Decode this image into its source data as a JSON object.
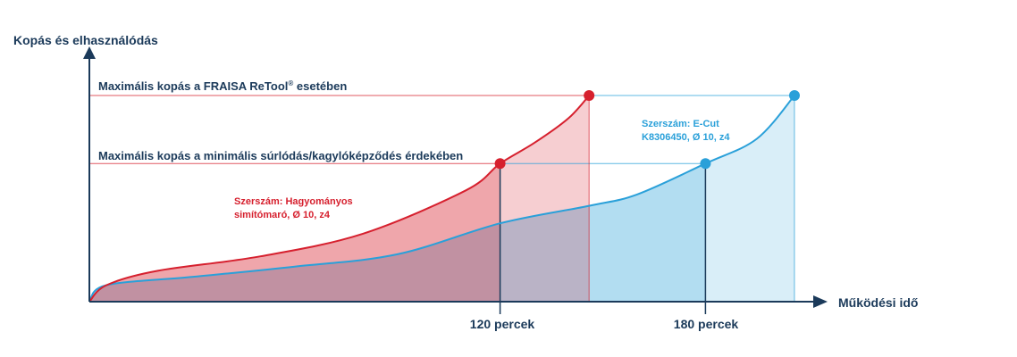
{
  "chart_data": {
    "type": "area",
    "ylabel": "Kopás és elhasználódás",
    "xlabel": "Működési idő",
    "x_ticks": [
      "120 percek",
      "180 percek"
    ],
    "levels": [
      {
        "name": "max_retool",
        "label": "Maximális kopás a FRAISA ReTool",
        "label_mark": "®",
        "label_tail": " esetében",
        "value": 100
      },
      {
        "name": "max_min_friction",
        "label": "Maximális kopás a minimális súrlódás/kagylóképződés érdekében",
        "value": 67
      }
    ],
    "series": [
      {
        "name": "Szerszám: Hagyományos simítómaró, Ø 10, z4",
        "label_lines": [
          "Szerszám: Hagyományos",
          "simítómaró, Ø 10, z4"
        ],
        "x": [
          0,
          5,
          20,
          50,
          80,
          110,
          120,
          130,
          140,
          146
        ],
        "y": [
          0,
          8,
          15,
          22,
          33,
          54,
          67,
          77,
          89,
          100
        ],
        "markers": [
          {
            "x": 120,
            "y": 67
          },
          {
            "x": 146,
            "y": 100
          }
        ]
      },
      {
        "name": "Szerszám: E-Cut K8306450, Ø 10, z4",
        "label_lines": [
          "Szerszám: E-Cut",
          "K8306450, Ø 10, z4"
        ],
        "x": [
          0,
          5,
          30,
          60,
          90,
          120,
          146,
          160,
          180,
          195,
          206
        ],
        "y": [
          0,
          8,
          12,
          17,
          23,
          38,
          46.5,
          52,
          67,
          79,
          100
        ],
        "markers": [
          {
            "x": 180,
            "y": 67
          },
          {
            "x": 206,
            "y": 100
          }
        ]
      }
    ],
    "colors": {
      "red": "#d6202e",
      "blue": "#2aa0d9",
      "axis": "#1b3a5a"
    }
  }
}
